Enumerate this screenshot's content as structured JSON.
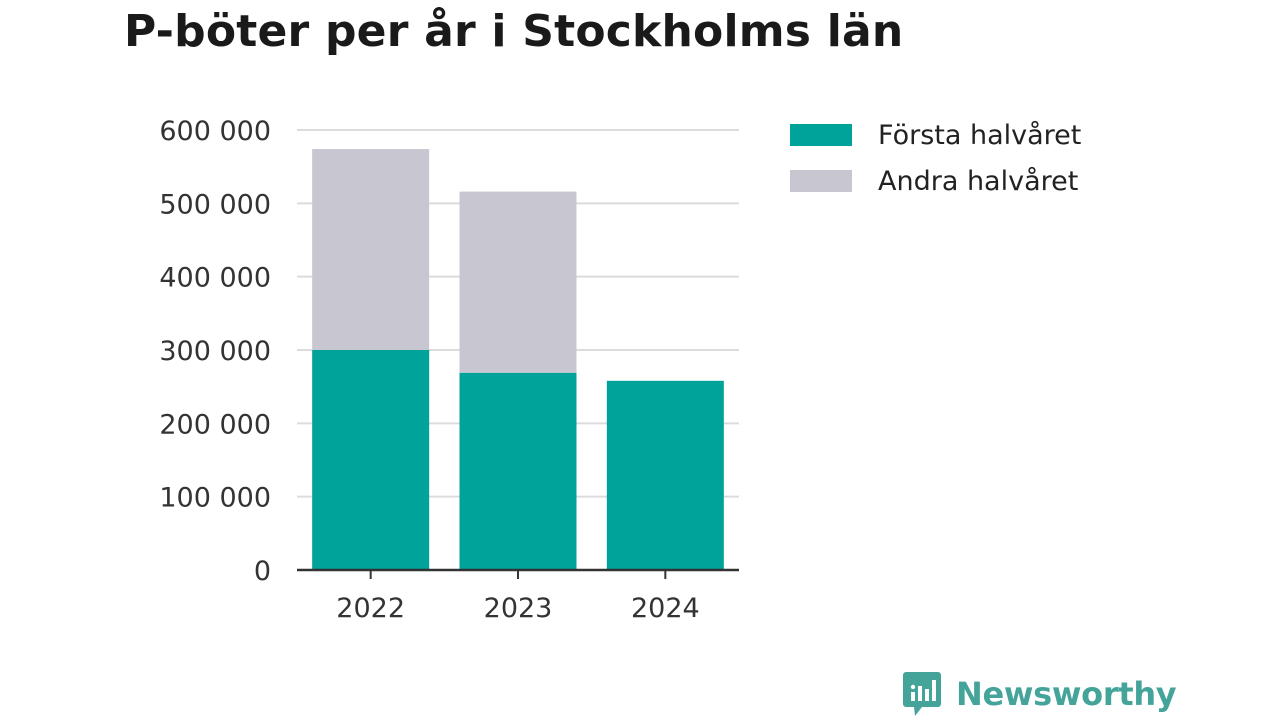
{
  "title": "P-böter per år i Stockholms län",
  "chart_data": {
    "type": "bar",
    "stacked": true,
    "title": "P-böter per år i Stockholms län",
    "xlabel": "",
    "ylabel": "",
    "categories": [
      "2022",
      "2023",
      "2024"
    ],
    "series": [
      {
        "name": "Första halvåret",
        "color": "#00a39a",
        "values": [
          300000,
          269000,
          258000
        ]
      },
      {
        "name": "Andra halvåret",
        "color": "#c8c7d1",
        "values": [
          274000,
          247000,
          0
        ]
      }
    ],
    "ylim": [
      0,
      600000
    ],
    "yticks": [
      0,
      100000,
      200000,
      300000,
      400000,
      500000,
      600000
    ],
    "ytick_labels": [
      "0",
      "100 000",
      "200 000",
      "300 000",
      "400 000",
      "500 000",
      "600 000"
    ],
    "grid": true,
    "legend": "top-right"
  },
  "legend": {
    "items": [
      {
        "label": "Första halvåret",
        "color": "#00a39a"
      },
      {
        "label": "Andra halvåret",
        "color": "#c8c7d1"
      }
    ]
  },
  "brand": {
    "name": "Newsworthy",
    "color": "#45a49a",
    "icon": "bar-chart-speech-bubble-icon"
  }
}
